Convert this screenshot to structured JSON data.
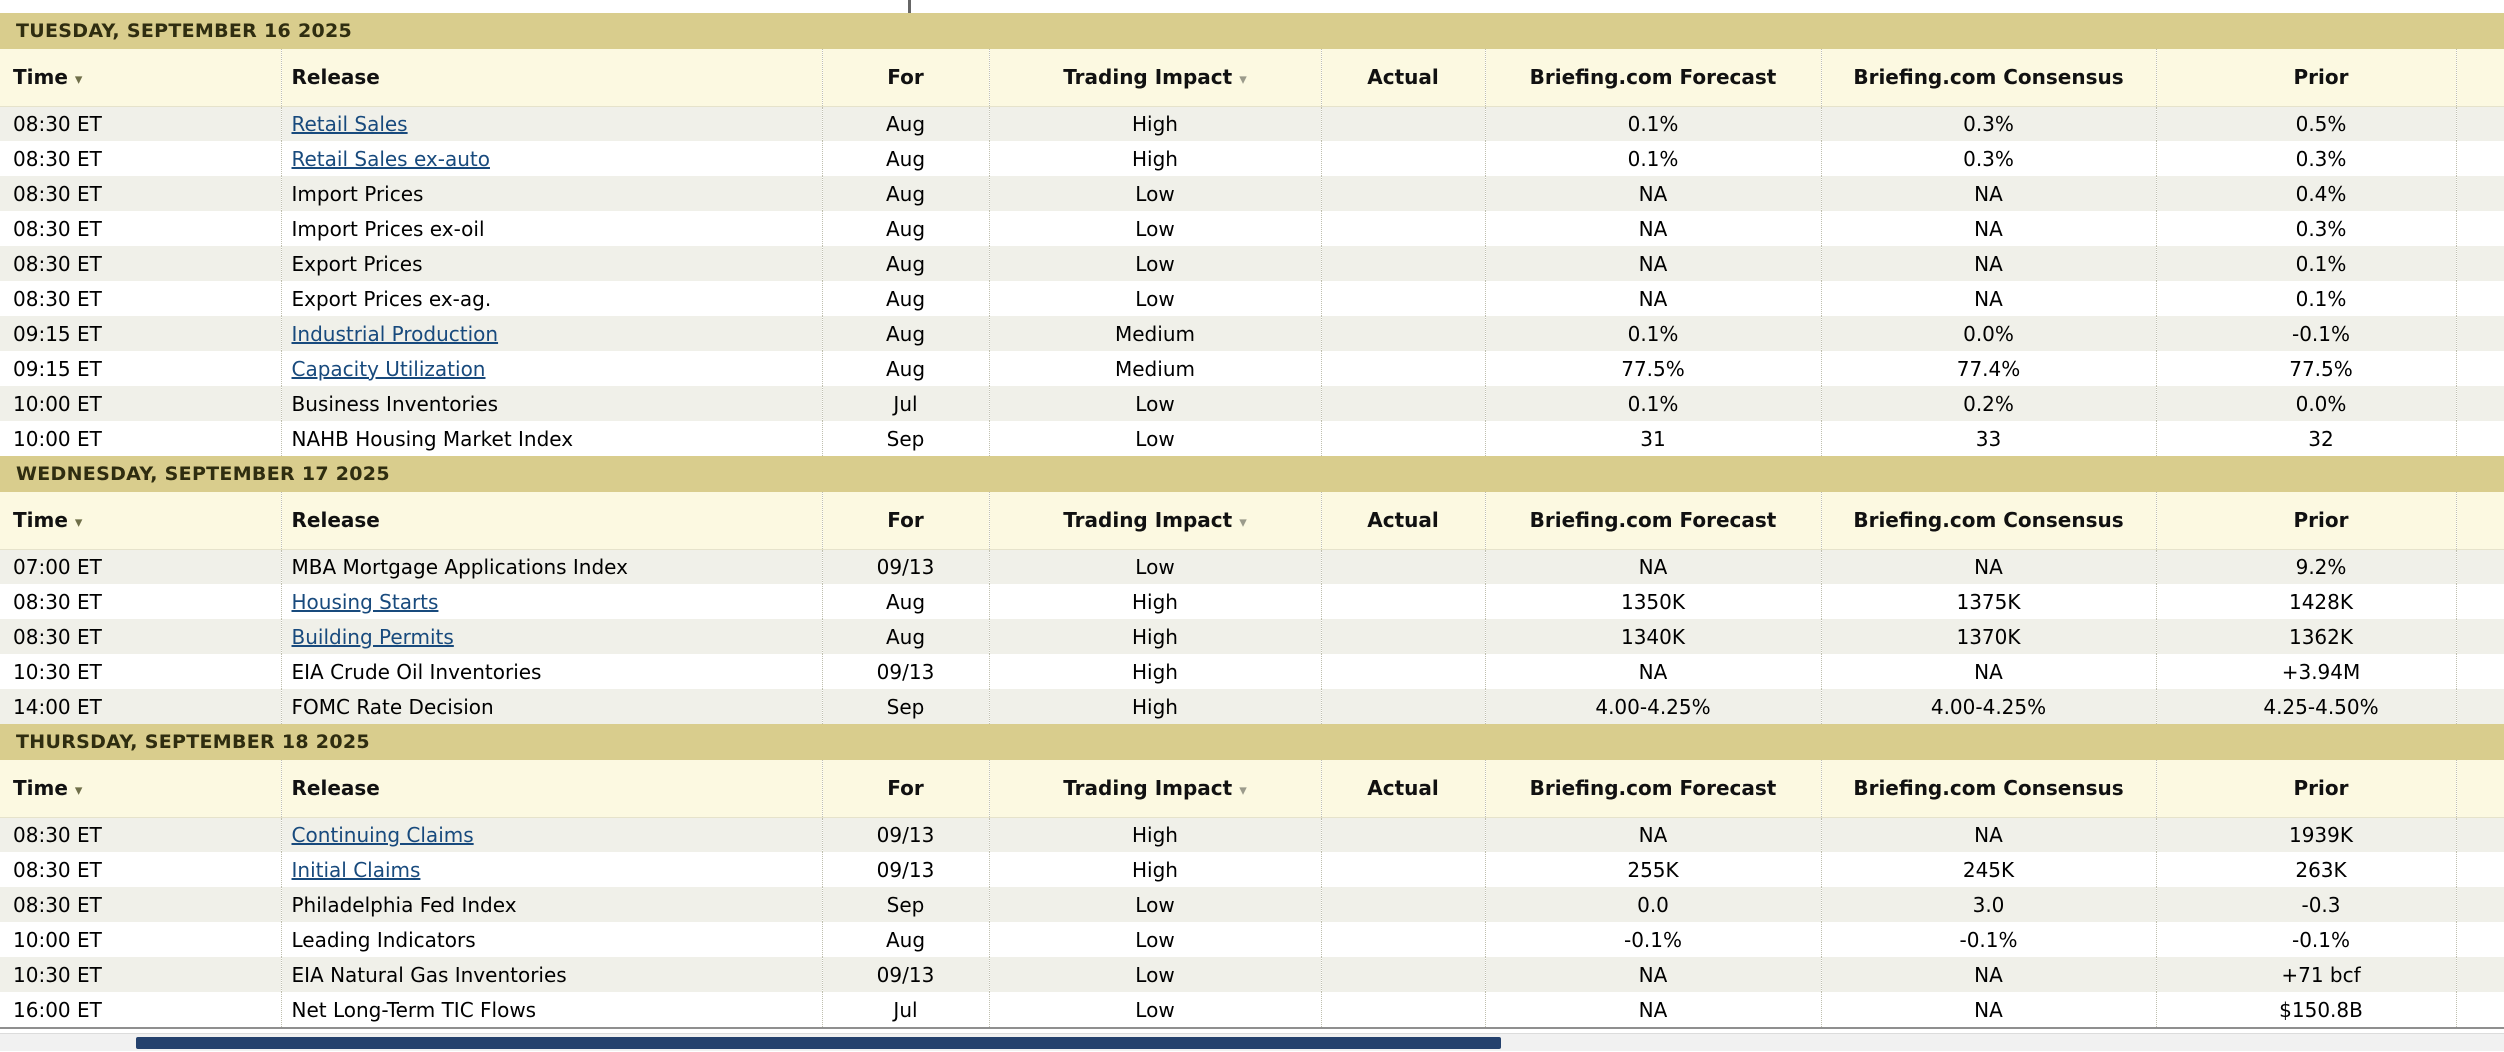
{
  "colors": {
    "day_header_bg": "#d9cd8d",
    "column_header_bg": "#fcf9e1",
    "alt_row_bg": "#f0f0e9",
    "link_color": "#184a7d",
    "scrollbar_thumb": "#24416d"
  },
  "columns": [
    "Time",
    "Release",
    "For",
    "Trading Impact",
    "Actual",
    "Briefing.com Forecast",
    "Briefing.com Consensus",
    "Prior"
  ],
  "icons": {
    "time_sort": "sort-descending-arrow",
    "impact_filter": "dropdown-arrow"
  },
  "sections": [
    {
      "date": "TUESDAY, SEPTEMBER 16 2025",
      "rows": [
        {
          "time": "08:30 ET",
          "release": "Retail Sales",
          "link": true,
          "for": "Aug",
          "impact": "High",
          "actual": "",
          "forecast": "0.1%",
          "consensus": "0.3%",
          "prior": "0.5%"
        },
        {
          "time": "08:30 ET",
          "release": "Retail Sales ex-auto",
          "link": true,
          "for": "Aug",
          "impact": "High",
          "actual": "",
          "forecast": "0.1%",
          "consensus": "0.3%",
          "prior": "0.3%"
        },
        {
          "time": "08:30 ET",
          "release": "Import Prices",
          "link": false,
          "for": "Aug",
          "impact": "Low",
          "actual": "",
          "forecast": "NA",
          "consensus": "NA",
          "prior": "0.4%"
        },
        {
          "time": "08:30 ET",
          "release": "Import Prices ex-oil",
          "link": false,
          "for": "Aug",
          "impact": "Low",
          "actual": "",
          "forecast": "NA",
          "consensus": "NA",
          "prior": "0.3%"
        },
        {
          "time": "08:30 ET",
          "release": "Export Prices",
          "link": false,
          "for": "Aug",
          "impact": "Low",
          "actual": "",
          "forecast": "NA",
          "consensus": "NA",
          "prior": "0.1%"
        },
        {
          "time": "08:30 ET",
          "release": "Export Prices ex-ag.",
          "link": false,
          "for": "Aug",
          "impact": "Low",
          "actual": "",
          "forecast": "NA",
          "consensus": "NA",
          "prior": "0.1%"
        },
        {
          "time": "09:15 ET",
          "release": "Industrial Production",
          "link": true,
          "for": "Aug",
          "impact": "Medium",
          "actual": "",
          "forecast": "0.1%",
          "consensus": "0.0%",
          "prior": "-0.1%"
        },
        {
          "time": "09:15 ET",
          "release": "Capacity Utilization",
          "link": true,
          "for": "Aug",
          "impact": "Medium",
          "actual": "",
          "forecast": "77.5%",
          "consensus": "77.4%",
          "prior": "77.5%"
        },
        {
          "time": "10:00 ET",
          "release": "Business Inventories",
          "link": false,
          "for": "Jul",
          "impact": "Low",
          "actual": "",
          "forecast": "0.1%",
          "consensus": "0.2%",
          "prior": "0.0%"
        },
        {
          "time": "10:00 ET",
          "release": "NAHB Housing Market Index",
          "link": false,
          "for": "Sep",
          "impact": "Low",
          "actual": "",
          "forecast": "31",
          "consensus": "33",
          "prior": "32"
        }
      ]
    },
    {
      "date": "WEDNESDAY, SEPTEMBER 17 2025",
      "rows": [
        {
          "time": "07:00 ET",
          "release": "MBA Mortgage Applications Index",
          "link": false,
          "for": "09/13",
          "impact": "Low",
          "actual": "",
          "forecast": "NA",
          "consensus": "NA",
          "prior": "9.2%"
        },
        {
          "time": "08:30 ET",
          "release": "Housing Starts",
          "link": true,
          "for": "Aug",
          "impact": "High",
          "actual": "",
          "forecast": "1350K",
          "consensus": "1375K",
          "prior": "1428K"
        },
        {
          "time": "08:30 ET",
          "release": "Building Permits",
          "link": true,
          "for": "Aug",
          "impact": "High",
          "actual": "",
          "forecast": "1340K",
          "consensus": "1370K",
          "prior": "1362K"
        },
        {
          "time": "10:30 ET",
          "release": "EIA Crude Oil Inventories",
          "link": false,
          "for": "09/13",
          "impact": "High",
          "actual": "",
          "forecast": "NA",
          "consensus": "NA",
          "prior": "+3.94M"
        },
        {
          "time": "14:00 ET",
          "release": "FOMC Rate Decision",
          "link": false,
          "for": "Sep",
          "impact": "High",
          "actual": "",
          "forecast": "4.00-4.25%",
          "consensus": "4.00-4.25%",
          "prior": "4.25-4.50%"
        }
      ]
    },
    {
      "date": "THURSDAY, SEPTEMBER 18 2025",
      "rows": [
        {
          "time": "08:30 ET",
          "release": "Continuing Claims",
          "link": true,
          "for": "09/13",
          "impact": "High",
          "actual": "",
          "forecast": "NA",
          "consensus": "NA",
          "prior": "1939K"
        },
        {
          "time": "08:30 ET",
          "release": "Initial Claims",
          "link": true,
          "for": "09/13",
          "impact": "High",
          "actual": "",
          "forecast": "255K",
          "consensus": "245K",
          "prior": "263K"
        },
        {
          "time": "08:30 ET",
          "release": "Philadelphia Fed Index",
          "link": false,
          "for": "Sep",
          "impact": "Low",
          "actual": "",
          "forecast": "0.0",
          "consensus": "3.0",
          "prior": "-0.3"
        },
        {
          "time": "10:00 ET",
          "release": "Leading Indicators",
          "link": false,
          "for": "Aug",
          "impact": "Low",
          "actual": "",
          "forecast": "-0.1%",
          "consensus": "-0.1%",
          "prior": "-0.1%"
        },
        {
          "time": "10:30 ET",
          "release": "EIA Natural Gas Inventories",
          "link": false,
          "for": "09/13",
          "impact": "Low",
          "actual": "",
          "forecast": "NA",
          "consensus": "NA",
          "prior": "+71 bcf"
        },
        {
          "time": "16:00 ET",
          "release": "Net Long-Term TIC Flows",
          "link": false,
          "for": "Jul",
          "impact": "Low",
          "actual": "",
          "forecast": "NA",
          "consensus": "NA",
          "prior": "$150.8B"
        }
      ]
    }
  ]
}
